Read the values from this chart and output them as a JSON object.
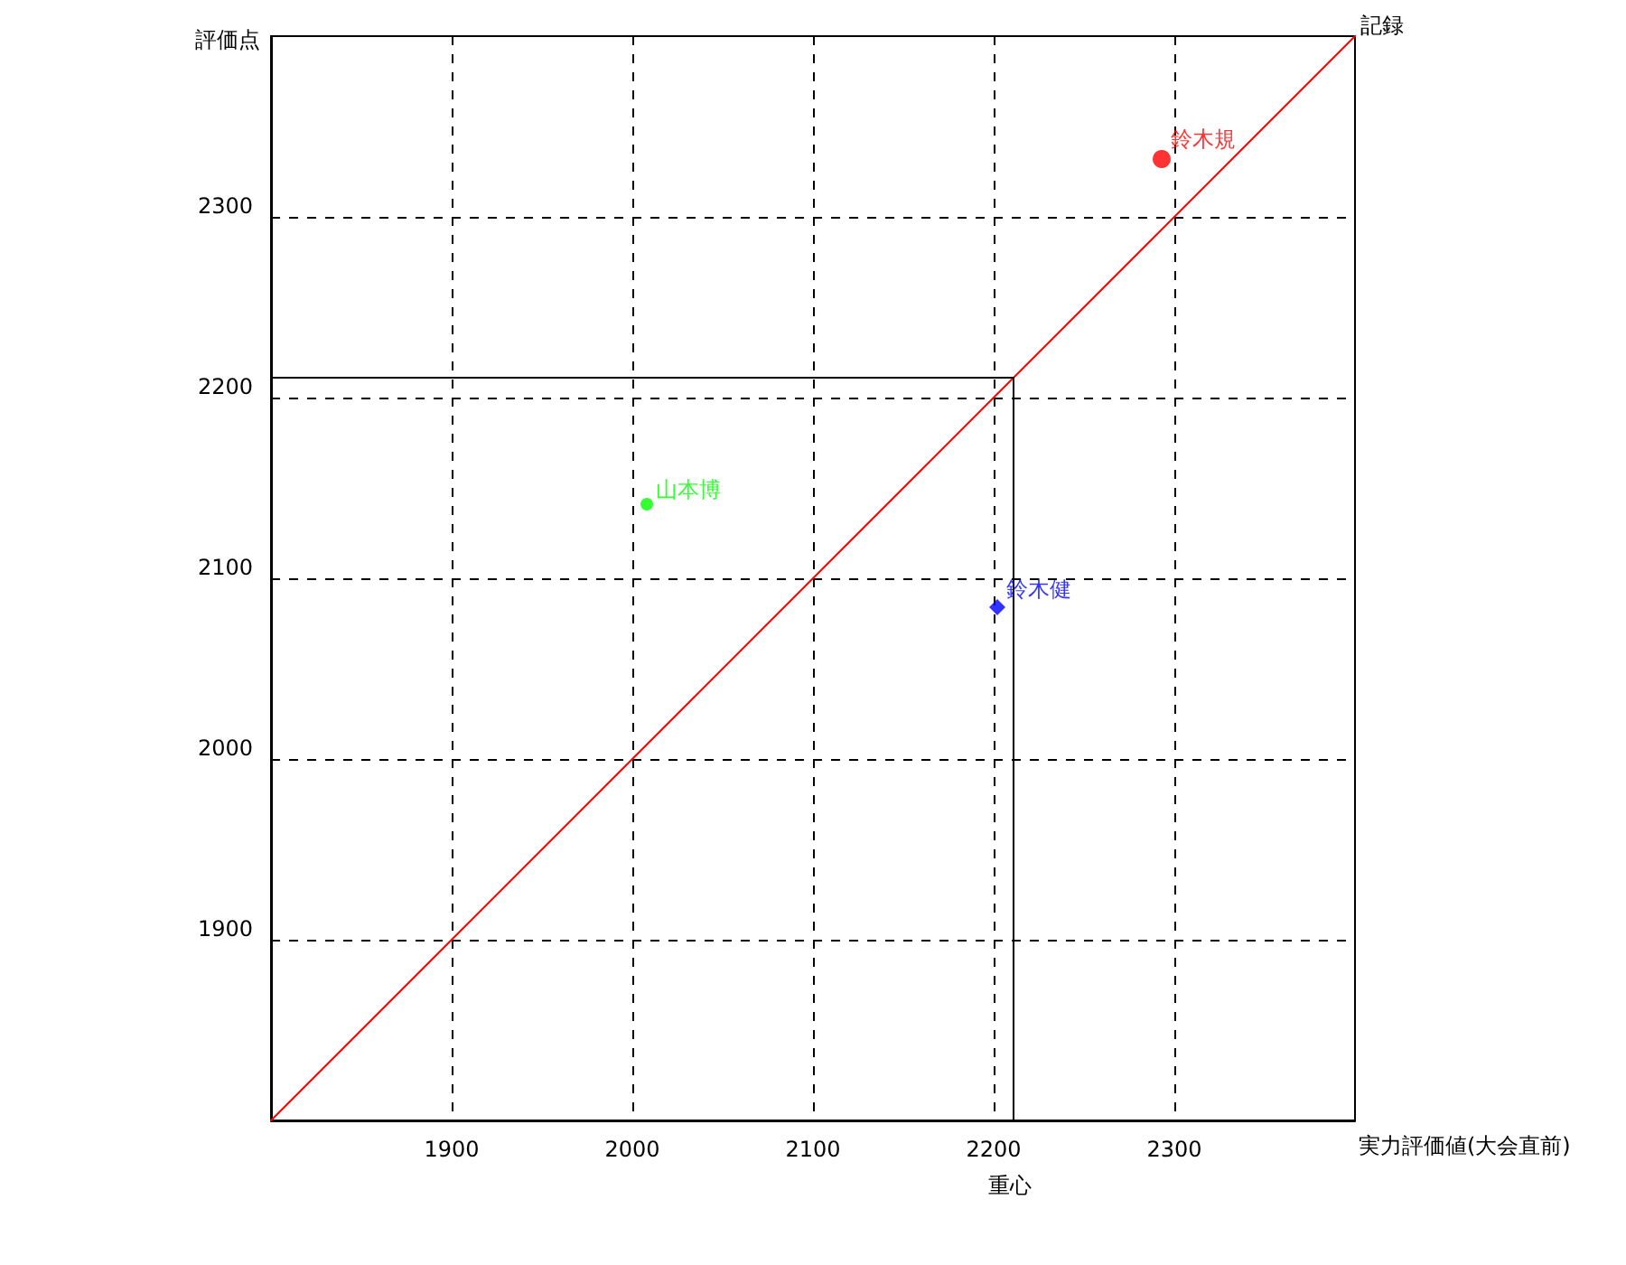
{
  "chart_data": {
    "type": "scatter",
    "xlabel": "実力評価値(大会直前)",
    "ylabel": "評価点",
    "xlim": [
      1800,
      2400
    ],
    "ylim": [
      1800,
      2400
    ],
    "xticks": [
      1900,
      2000,
      2100,
      2200,
      2300
    ],
    "yticks": [
      1900,
      2000,
      2100,
      2200,
      2300
    ],
    "grid": true,
    "annotations": [
      {
        "text": "記録",
        "x": 2400,
        "y": 2400
      }
    ],
    "series": [
      {
        "type": "line",
        "color": "#ff0000",
        "x": [
          1800,
          2400
        ],
        "values": [
          1800,
          2400
        ],
        "marker": "none"
      },
      {
        "name": "重心",
        "type": "line",
        "color": "#000000",
        "x": [
          1800,
          2211,
          2211
        ],
        "values": [
          2211,
          2211,
          1800
        ],
        "marker": "none"
      },
      {
        "name": "鈴木規",
        "color": "#ff0000",
        "x": [
          2293
        ],
        "values": [
          2332
        ],
        "marker": "circle"
      },
      {
        "name": "山本博",
        "color": "#00ff00",
        "x": [
          2008
        ],
        "values": [
          2141
        ],
        "marker": "circle"
      },
      {
        "name": "鈴木健",
        "color": "#0000ff",
        "x": [
          2202
        ],
        "values": [
          2084
        ],
        "marker": "diamond"
      }
    ]
  }
}
